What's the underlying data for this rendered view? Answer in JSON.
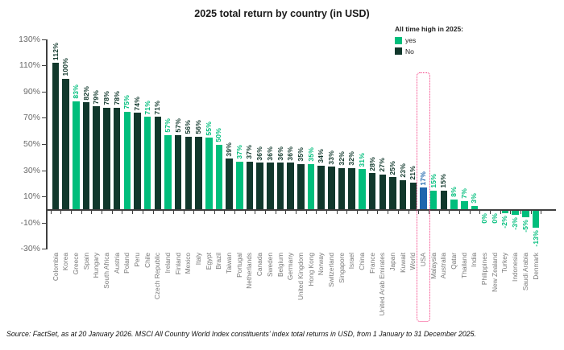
{
  "title": "2025 total return by country (in USD)",
  "legend": {
    "title": "All time high in 2025:",
    "items": [
      {
        "label": "yes",
        "key": "yes"
      },
      {
        "label": "No",
        "key": "no"
      }
    ]
  },
  "source": "Source: FactSet, as at 20 January 2026. MSCI All Country World Index constituents’ index total returns in USD, from 1 January to 31 December 2025.",
  "chart_data": {
    "type": "bar",
    "title": "2025 total return by country (in USD)",
    "xlabel": "",
    "ylabel": "",
    "ylim": [
      -30,
      130
    ],
    "ytick_step": 20,
    "ytick_labels": [
      "130%",
      "110%",
      "90%",
      "70%",
      "50%",
      "30%",
      "10%",
      "-10%",
      "-30%"
    ],
    "grid": false,
    "legend_position": "top-right",
    "highlighted_category": "USA",
    "bars": [
      {
        "country": "Colombia",
        "value": 112,
        "style": "no"
      },
      {
        "country": "Korea",
        "value": 100,
        "style": "no"
      },
      {
        "country": "Greece",
        "value": 83,
        "style": "yes"
      },
      {
        "country": "Spain",
        "value": 82,
        "style": "no"
      },
      {
        "country": "Hungary",
        "value": 79,
        "style": "no"
      },
      {
        "country": "South Africa",
        "value": 78,
        "style": "no"
      },
      {
        "country": "Austria",
        "value": 78,
        "style": "no"
      },
      {
        "country": "Poland",
        "value": 75,
        "style": "yes"
      },
      {
        "country": "Peru",
        "value": 74,
        "style": "no"
      },
      {
        "country": "Chile",
        "value": 71,
        "style": "yes"
      },
      {
        "country": "Czech Republic",
        "value": 71,
        "style": "no"
      },
      {
        "country": "Ireland",
        "value": 57,
        "style": "yes"
      },
      {
        "country": "Finland",
        "value": 57,
        "style": "no"
      },
      {
        "country": "Mexico",
        "value": 56,
        "style": "no"
      },
      {
        "country": "Italy",
        "value": 56,
        "style": "no"
      },
      {
        "country": "Egypt",
        "value": 55,
        "style": "yes"
      },
      {
        "country": "Brazil",
        "value": 50,
        "style": "yes"
      },
      {
        "country": "Taiwan",
        "value": 39,
        "style": "no"
      },
      {
        "country": "Portugal",
        "value": 37,
        "style": "yes"
      },
      {
        "country": "Netherlands",
        "value": 37,
        "style": "no"
      },
      {
        "country": "Canada",
        "value": 36,
        "style": "no"
      },
      {
        "country": "Sweden",
        "value": 36,
        "style": "no"
      },
      {
        "country": "Belgium",
        "value": 36,
        "style": "no"
      },
      {
        "country": "Germany",
        "value": 36,
        "style": "no"
      },
      {
        "country": "United Kingdom",
        "value": 35,
        "style": "no"
      },
      {
        "country": "Hong Kong",
        "value": 35,
        "style": "yes"
      },
      {
        "country": "Norway",
        "value": 34,
        "style": "no"
      },
      {
        "country": "Switzerland",
        "value": 33,
        "style": "no"
      },
      {
        "country": "Singapore",
        "value": 32,
        "style": "no"
      },
      {
        "country": "Israel",
        "value": 32,
        "style": "no"
      },
      {
        "country": "China",
        "value": 31,
        "style": "yes"
      },
      {
        "country": "France",
        "value": 28,
        "style": "no"
      },
      {
        "country": "United Arab Emirates",
        "value": 27,
        "style": "no"
      },
      {
        "country": "Japan",
        "value": 25,
        "style": "no"
      },
      {
        "country": "Kuwait",
        "value": 23,
        "style": "no"
      },
      {
        "country": "World",
        "value": 21,
        "style": "no"
      },
      {
        "country": "USA",
        "value": 17,
        "style": "usa"
      },
      {
        "country": "Malaysia",
        "value": 15,
        "style": "yes"
      },
      {
        "country": "Australia",
        "value": 15,
        "style": "no"
      },
      {
        "country": "Qatar",
        "value": 8,
        "style": "yes"
      },
      {
        "country": "Thailand",
        "value": 7,
        "style": "yes"
      },
      {
        "country": "India",
        "value": 3,
        "style": "yes"
      },
      {
        "country": "Philippines",
        "value": 0,
        "style": "yes"
      },
      {
        "country": "New Zealand",
        "value": 0,
        "style": "yes"
      },
      {
        "country": "Turkey",
        "value": -2,
        "style": "yes"
      },
      {
        "country": "Indonesia",
        "value": -3,
        "style": "yes"
      },
      {
        "country": "Saudi Arabia",
        "value": -5,
        "style": "yes"
      },
      {
        "country": "Denmark",
        "value": -13,
        "style": "yes"
      }
    ],
    "colors": {
      "yes": "#00BE7C",
      "no": "#11382C",
      "usa": "#1F66AE",
      "highlight_box": "#F4357E",
      "axis": "#3F3F3F",
      "tick_label": "#6B6B6B",
      "country_label": "#7A7A7A"
    }
  }
}
